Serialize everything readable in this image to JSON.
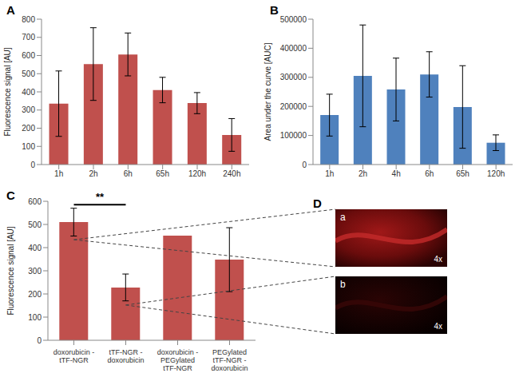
{
  "chart_data": [
    {
      "panel_label": "A",
      "type": "bar",
      "y_label": "Fluorescence signal [AU]",
      "categories": [
        "1h",
        "2h",
        "6h",
        "65h",
        "120h",
        "240h"
      ],
      "values": [
        335,
        553,
        606,
        410,
        338,
        163
      ],
      "errors": [
        180,
        200,
        118,
        70,
        58,
        90
      ],
      "color": "#c0504d",
      "ylim": [
        0,
        800
      ],
      "yticks": [
        0,
        100,
        200,
        300,
        400,
        500,
        600,
        700,
        800
      ],
      "grid": false
    },
    {
      "panel_label": "B",
      "type": "bar",
      "y_label": "Area under the curve [AUC]",
      "categories": [
        "1h",
        "2h",
        "4h",
        "6h",
        "65h",
        "120h"
      ],
      "values": [
        170000,
        305000,
        258000,
        310000,
        198000,
        75000
      ],
      "errors": [
        72000,
        175000,
        108000,
        78000,
        142000,
        27000
      ],
      "color": "#4f81bd",
      "ylim": [
        0,
        500000
      ],
      "yticks": [
        0,
        100000,
        200000,
        300000,
        400000,
        500000
      ],
      "grid": false
    },
    {
      "panel_label": "C",
      "type": "bar",
      "y_label": "Fluorescence signal [AU]",
      "categories": [
        "doxorubicin - tTF-NGR",
        "tTF-NGR - doxorubicin",
        "doxorubicin - PEGylated tTF-NGR",
        "PEGylated tTF-NGR - doxorubicin"
      ],
      "values": [
        510,
        228,
        452,
        348
      ],
      "errors": [
        60,
        58,
        null,
        138
      ],
      "color": "#c0504d",
      "ylim": [
        0,
        600
      ],
      "yticks": [
        0,
        100,
        200,
        300,
        400,
        500,
        600
      ],
      "grid": false,
      "annotations": [
        {
          "text": "**",
          "from": 0,
          "to": 1,
          "y": 585
        }
      ]
    }
  ],
  "image_panel": {
    "panel_label": "D",
    "images": [
      {
        "label": "a",
        "magnification": "4x",
        "linked_bar": 0
      },
      {
        "label": "b",
        "magnification": "4x",
        "linked_bar": 1
      }
    ]
  }
}
